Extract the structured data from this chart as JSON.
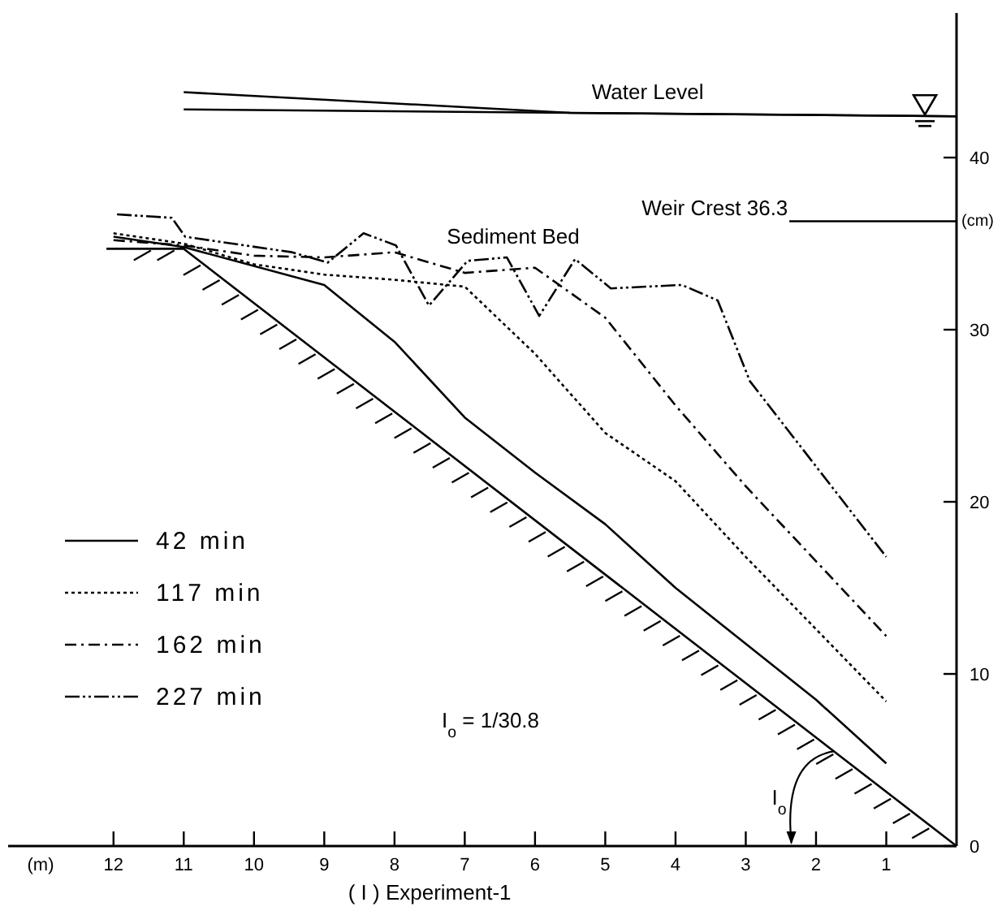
{
  "chart_data": {
    "type": "line",
    "title": "( I ) Experiment-1",
    "xlabel": "(m)",
    "ylabel": "(cm)",
    "xlim": [
      13.5,
      0
    ],
    "ylim": [
      0,
      48.4
    ],
    "xticks": [
      1,
      2,
      3,
      4,
      5,
      6,
      7,
      8,
      9,
      10,
      11,
      12
    ],
    "yticks": [
      0,
      10,
      20,
      30,
      40
    ],
    "grid": false,
    "legend": "bottom left",
    "marker": "none",
    "series": [
      {
        "name": "42 min",
        "color": "#000000",
        "line_style": "solid",
        "x": [
          12,
          11,
          9,
          8,
          7,
          6,
          5,
          4,
          2,
          1
        ],
        "values": [
          35.4,
          34.8,
          32.6,
          29.3,
          24.9,
          21.7,
          18.7,
          15.0,
          8.5,
          4.8
        ]
      },
      {
        "name": "117 min",
        "color": "#000000",
        "line_style": "dotted",
        "x": [
          12,
          11,
          10,
          9,
          8,
          7,
          6,
          5,
          4,
          3,
          1
        ],
        "values": [
          35.6,
          35.0,
          33.8,
          33.2,
          32.9,
          32.5,
          28.6,
          24.0,
          21.2,
          16.8,
          8.4
        ]
      },
      {
        "name": "162 min",
        "color": "#000000",
        "line_style": "dashdot",
        "x": [
          12,
          11,
          10,
          9,
          8,
          7,
          6,
          5,
          4,
          3,
          1
        ],
        "values": [
          35.2,
          34.9,
          34.3,
          34.2,
          34.5,
          33.3,
          33.6,
          30.7,
          25.6,
          20.9,
          12.2
        ]
      },
      {
        "name": "227 min",
        "color": "#000000",
        "line_style": "dashed",
        "x": [
          11.95,
          11.17,
          10.98,
          9.46,
          8.95,
          8.44,
          7.98,
          7.51,
          6.96,
          6.4,
          5.94,
          5.43,
          4.92,
          3.91,
          3.4,
          2.94,
          1
        ],
        "values": [
          36.7,
          36.5,
          35.4,
          34.5,
          33.9,
          35.6,
          34.9,
          31.4,
          34.0,
          34.2,
          30.8,
          34.1,
          32.4,
          32.6,
          31.7,
          27.0,
          16.8
        ]
      },
      {
        "color": "#000000",
        "line_style": "solid",
        "x": [
          12.1,
          11,
          0
        ],
        "values": [
          34.7,
          34.7,
          0
        ]
      },
      {
        "color": "#000000",
        "line_style": "solid",
        "x": [
          11,
          5.5,
          0
        ],
        "values": [
          43.8,
          42.6,
          42.4
        ]
      },
      {
        "color": "#000000",
        "line_style": "solid",
        "x": [
          11,
          0
        ],
        "values": [
          42.8,
          42.4
        ]
      },
      {
        "color": "#000000",
        "line_style": "solid",
        "x": [
          2.38,
          0
        ],
        "values": [
          36.3,
          36.3
        ]
      }
    ],
    "annotations": [
      {
        "text": "Water Level",
        "x": 3.6,
        "y": 43.0
      },
      {
        "text": "Weir Crest 36.3",
        "x": 2.4,
        "y": 36.3
      },
      "Sediment Bed",
      "I$_{o}$ = 1/30.8",
      {
        "text": "I$_{o}$",
        "x": 1.75,
        "y": 5.5
      }
    ]
  }
}
